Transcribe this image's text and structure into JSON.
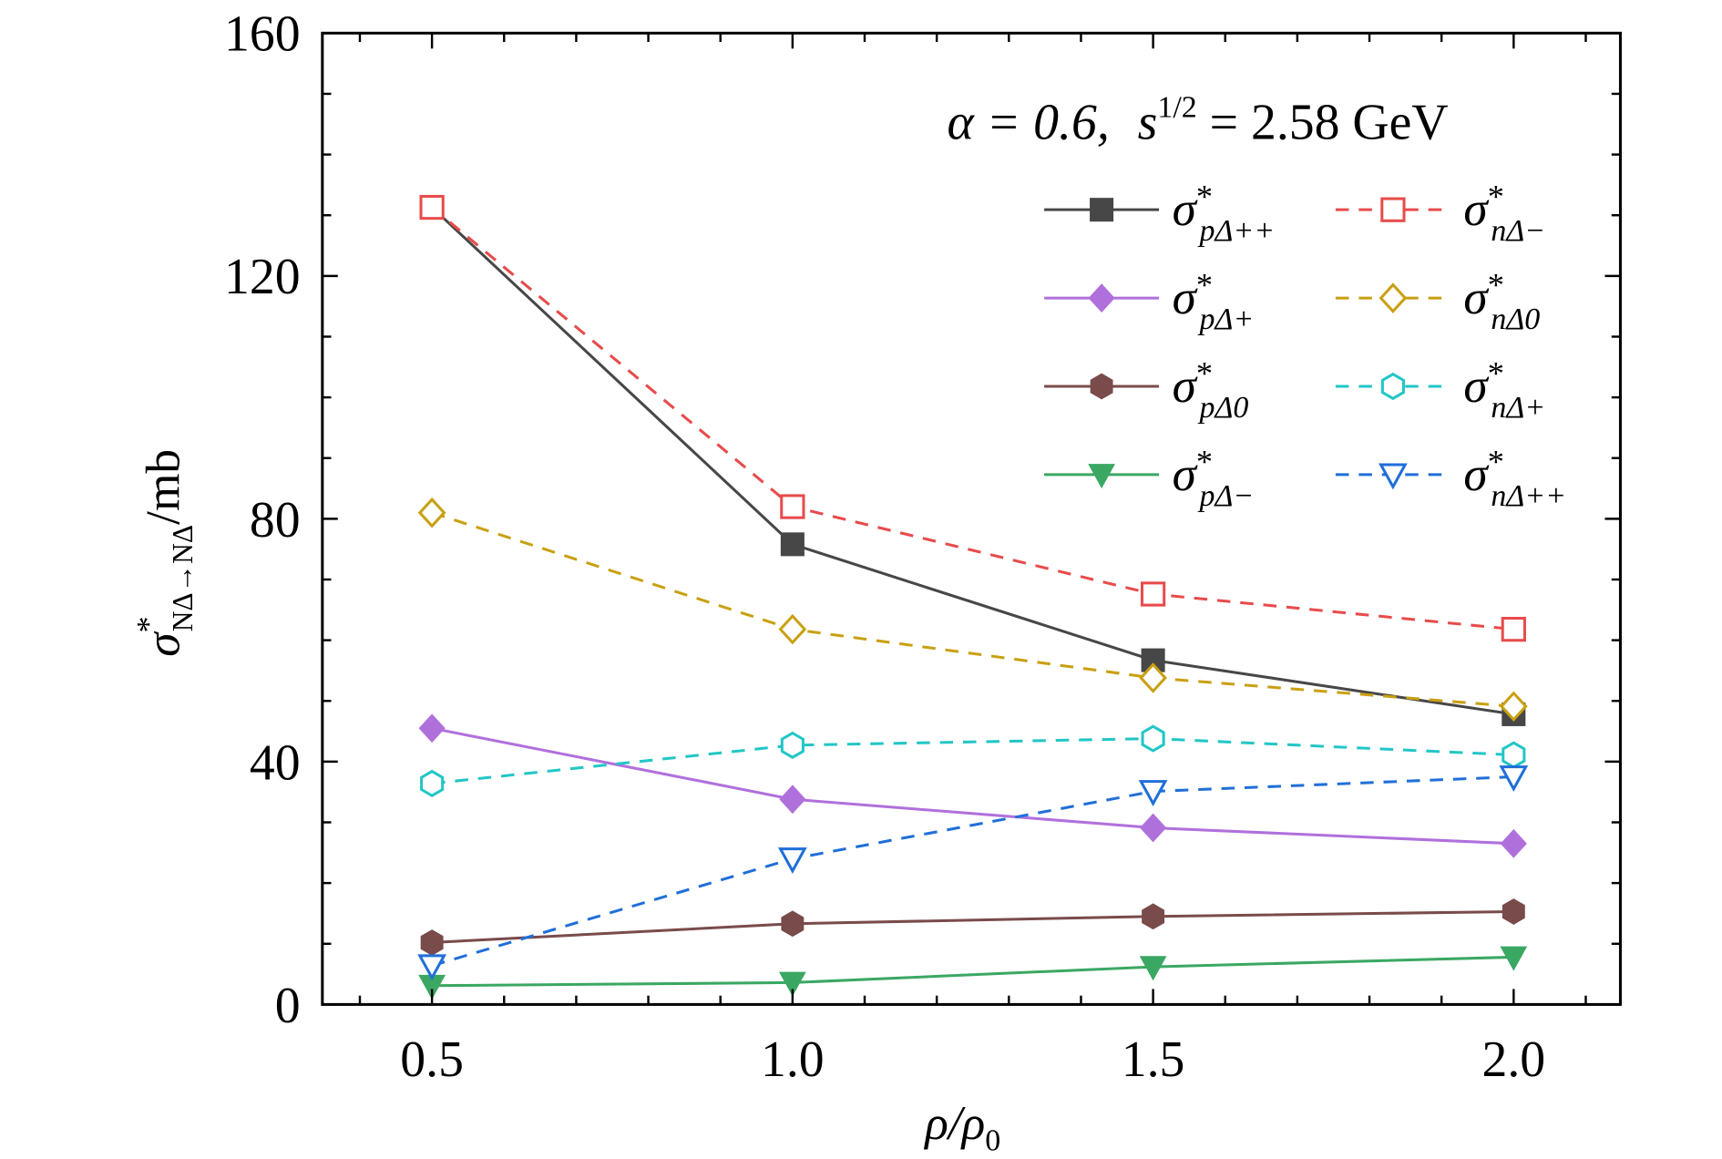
{
  "chart_data": {
    "type": "line",
    "annotation": {
      "alpha": "α = 0.6,",
      "s_base": "s",
      "s_sup": "1/2",
      "s_rest": " = 2.58 GeV"
    },
    "xlabel": {
      "main": "ρ/ρ",
      "sub": "0"
    },
    "ylabel": {
      "main": "σ",
      "sup": "*",
      "sub": "NΔ→NΔ",
      "rest": "/mb"
    },
    "xlim": [
      0.348,
      2.148
    ],
    "ylim": [
      0,
      160
    ],
    "x_ticks": [
      "0.5",
      "1.0",
      "1.5",
      "2.0"
    ],
    "y_ticks": [
      "0",
      "40",
      "80",
      "120",
      "160"
    ],
    "x": [
      0.5,
      1.0,
      1.5,
      2.0
    ],
    "legend_position": "top-right",
    "series": [
      {
        "name": "σ*pΔ++",
        "sub": "pΔ++",
        "values": [
          131.3,
          75.8,
          56.7,
          47.8
        ],
        "color": "#474747",
        "marker": "square",
        "filled": true,
        "dashed": false
      },
      {
        "name": "σ*nΔ−",
        "sub": "nΔ−",
        "values": [
          131.3,
          82.0,
          67.6,
          61.8
        ],
        "color": "#e84b4b",
        "marker": "square",
        "filled": false,
        "dashed": true
      },
      {
        "name": "σ*pΔ+",
        "sub": "pΔ+",
        "values": [
          45.5,
          33.8,
          29.1,
          26.5
        ],
        "color": "#b070dc",
        "marker": "diamond",
        "filled": true,
        "dashed": false
      },
      {
        "name": "σ*nΔ0",
        "sub": "nΔ0",
        "values": [
          81.0,
          61.8,
          53.8,
          49.1
        ],
        "color": "#c9a012",
        "marker": "diamond",
        "filled": false,
        "dashed": true
      },
      {
        "name": "σ*pΔ0",
        "sub": "pΔ0",
        "values": [
          10.2,
          13.3,
          14.5,
          15.3
        ],
        "color": "#7a4b4b",
        "marker": "hexagon",
        "filled": true,
        "dashed": false
      },
      {
        "name": "σ*nΔ+",
        "sub": "nΔ+",
        "values": [
          36.4,
          42.7,
          43.8,
          41.1
        ],
        "color": "#22c6c6",
        "marker": "hexagon",
        "filled": false,
        "dashed": true
      },
      {
        "name": "σ*pΔ−",
        "sub": "pΔ−",
        "values": [
          3.1,
          3.6,
          6.2,
          7.8
        ],
        "color": "#3aa862",
        "marker": "triangle-down",
        "filled": true,
        "dashed": false
      },
      {
        "name": "σ*nΔ++",
        "sub": "nΔ++",
        "values": [
          6.4,
          24.0,
          35.1,
          37.5
        ],
        "color": "#1f6fd8",
        "marker": "triangle-down",
        "filled": false,
        "dashed": true
      }
    ]
  }
}
